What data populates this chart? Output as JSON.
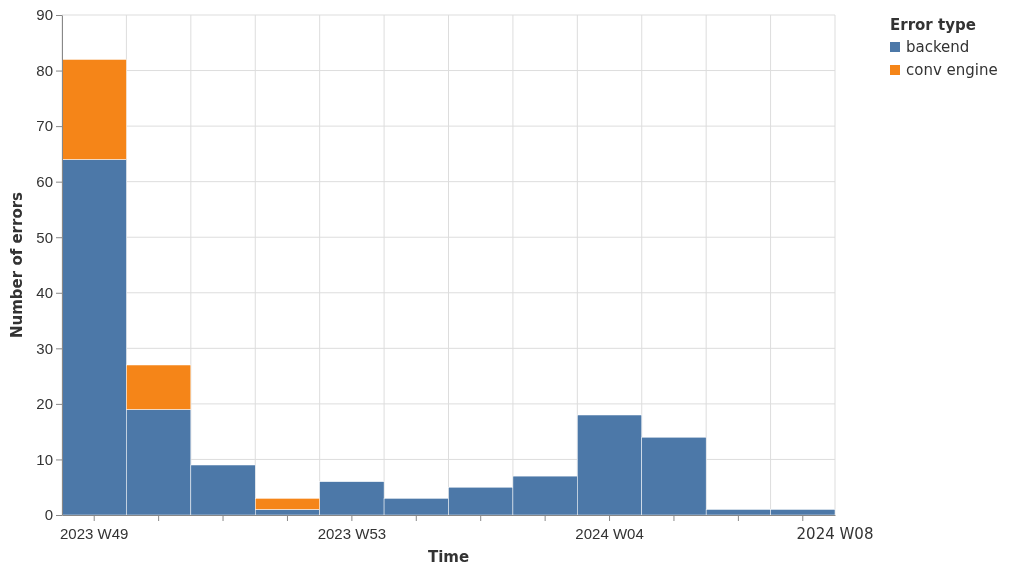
{
  "chart_data": {
    "type": "bar",
    "xlabel": "Time",
    "ylabel": "Number of errors",
    "legend_title": "Error type",
    "categories": [
      "2023 W49",
      null,
      null,
      null,
      "2023 W53",
      null,
      null,
      null,
      "2024 W04",
      null,
      null,
      null
    ],
    "stacked": true,
    "series": [
      {
        "name": "backend",
        "color": "#4c78a8",
        "values": [
          64,
          19,
          9,
          1,
          6,
          3,
          5,
          7,
          18,
          14,
          1,
          1
        ]
      },
      {
        "name": "conv engine",
        "color": "#f58518",
        "values": [
          18,
          8,
          0,
          2,
          0,
          0,
          0,
          0,
          0,
          0,
          0,
          0
        ]
      }
    ],
    "annotations": [
      "2024 W08"
    ],
    "ylim": [
      0,
      90
    ],
    "yticks": [
      0,
      10,
      20,
      30,
      40,
      50,
      60,
      70,
      80,
      90
    ],
    "grid": true,
    "legend": "top right"
  }
}
